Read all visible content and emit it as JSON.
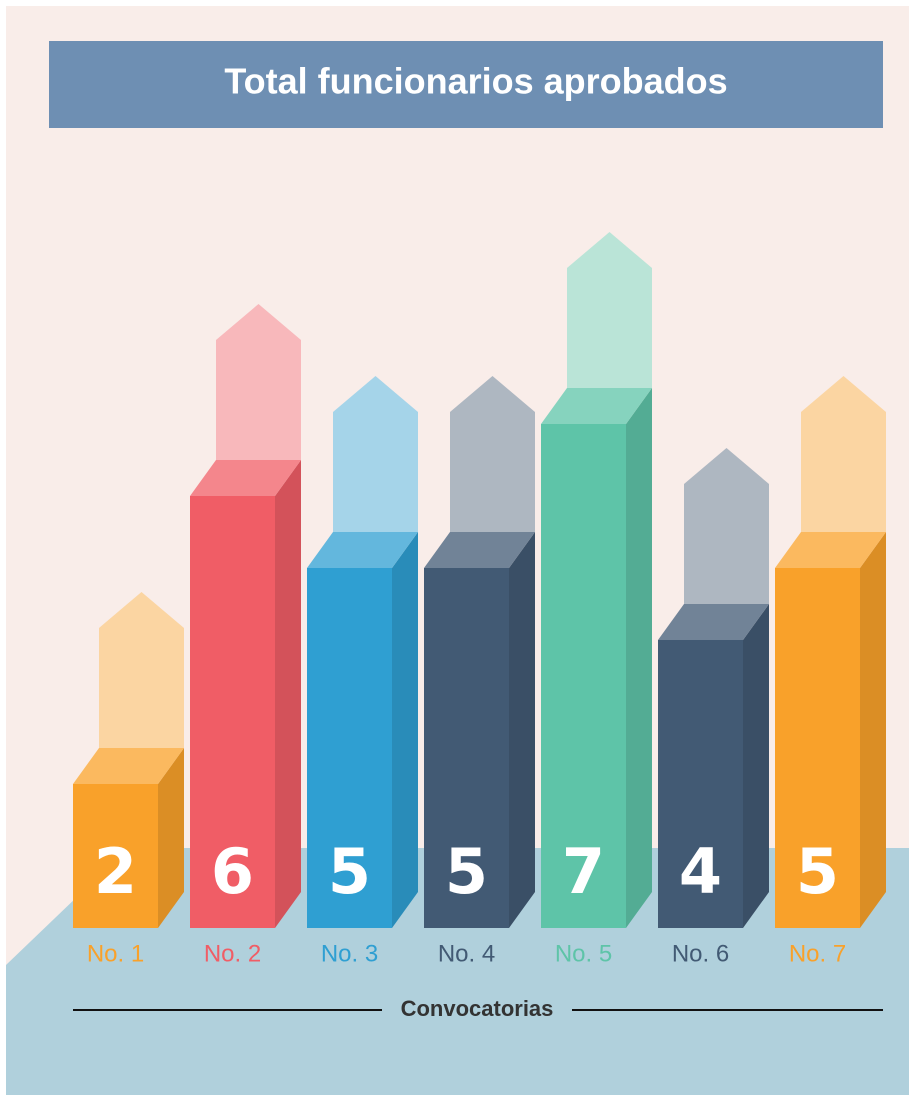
{
  "chart_data": {
    "type": "bar",
    "title": "Total funcionarios aprobados",
    "x_label": "Convocatorias",
    "categories": [
      "No. 1",
      "No. 2",
      "No. 3",
      "No. 4",
      "No. 5",
      "No. 6",
      "No. 7"
    ],
    "values": [
      2,
      6,
      5,
      5,
      7,
      4,
      5
    ],
    "colors": [
      "#f9a12a",
      "#f05d66",
      "#2f9fd2",
      "#425a74",
      "#5ec4a8",
      "#425a74",
      "#f9a12a"
    ]
  }
}
